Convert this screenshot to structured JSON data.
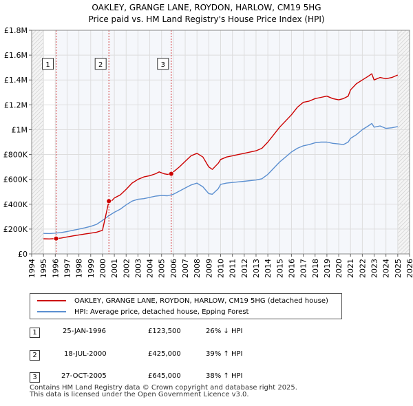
{
  "title_line1": "OAKLEY, GRANGE LANE, ROYDON, HARLOW, CM19 5HG",
  "title_line2": "Price paid vs. HM Land Registry's House Price Index (HPI)",
  "colors": {
    "property": "#cc0000",
    "hpi": "#5b8fd0",
    "sale_marker": "#cc0000",
    "vline": "#cc0000",
    "shade": "#e8eef7"
  },
  "legend": {
    "property_label": "OAKLEY, GRANGE LANE, ROYDON, HARLOW, CM19 5HG (detached house)",
    "hpi_label": "HPI: Average price, detached house, Epping Forest"
  },
  "sales": [
    {
      "num": "1",
      "date": "25-JAN-1996",
      "price": "£123,500",
      "hpi_diff": "26% ↓ HPI"
    },
    {
      "num": "2",
      "date": "18-JUL-2000",
      "price": "£425,000",
      "hpi_diff": "39% ↑ HPI"
    },
    {
      "num": "3",
      "date": "27-OCT-2005",
      "price": "£645,000",
      "hpi_diff": "38% ↑ HPI"
    }
  ],
  "footer_line1": "Contains HM Land Registry data © Crown copyright and database right 2025.",
  "footer_line2": "This data is licensed under the Open Government Licence v3.0.",
  "chart_data": {
    "type": "line",
    "xlim": [
      1994,
      2026
    ],
    "ylim": [
      0,
      1800000
    ],
    "x_ticks": [
      1994,
      1995,
      1996,
      1997,
      1998,
      1999,
      2000,
      2001,
      2002,
      2003,
      2004,
      2005,
      2006,
      2007,
      2008,
      2009,
      2010,
      2011,
      2012,
      2013,
      2014,
      2015,
      2016,
      2017,
      2018,
      2019,
      2020,
      2021,
      2022,
      2023,
      2024,
      2025,
      2026
    ],
    "y_ticks": [
      0,
      200000,
      400000,
      600000,
      800000,
      1000000,
      1200000,
      1400000,
      1600000,
      1800000
    ],
    "y_tick_labels": [
      "£0",
      "£200K",
      "£400K",
      "£600K",
      "£800K",
      "£1M",
      "£1.2M",
      "£1.4M",
      "£1.6M",
      "£1.8M"
    ],
    "hatched_ranges": [
      [
        1994,
        1995.0
      ],
      [
        2025.0,
        2026
      ]
    ],
    "grid": true,
    "series": [
      {
        "name": "OAKLEY, GRANGE LANE, ROYDON, HARLOW, CM19 5HG (detached house)",
        "x": [
          1995.0,
          1995.5,
          1996.07,
          1996.5,
          1997,
          1997.5,
          1998,
          1998.5,
          1999,
          1999.5,
          2000.0,
          2000.54,
          2000.8,
          2001.0,
          2001.5,
          2002,
          2002.5,
          2003,
          2003.5,
          2004,
          2004.5,
          2004.8,
          2005.2,
          2005.5,
          2005.82,
          2006,
          2006.5,
          2007,
          2007.5,
          2008,
          2008.5,
          2009,
          2009.3,
          2009.8,
          2010,
          2010.5,
          2011,
          2011.5,
          2012,
          2012.5,
          2013,
          2013.5,
          2014,
          2014.5,
          2015,
          2015.5,
          2016,
          2016.5,
          2017,
          2017.5,
          2018,
          2018.5,
          2019,
          2019.5,
          2020,
          2020.4,
          2020.8,
          2021,
          2021.5,
          2022,
          2022.5,
          2022.8,
          2023,
          2023.5,
          2024,
          2024.5,
          2025.0
        ],
        "y": [
          122000,
          121000,
          123500,
          128000,
          137000,
          145000,
          153000,
          160000,
          167000,
          175000,
          190000,
          425000,
          430000,
          450000,
          475000,
          520000,
          570000,
          600000,
          620000,
          630000,
          645000,
          660000,
          645000,
          640000,
          645000,
          660000,
          700000,
          745000,
          790000,
          810000,
          780000,
          700000,
          680000,
          730000,
          760000,
          780000,
          790000,
          800000,
          810000,
          820000,
          830000,
          850000,
          900000,
          960000,
          1020000,
          1070000,
          1120000,
          1180000,
          1220000,
          1230000,
          1250000,
          1260000,
          1270000,
          1250000,
          1240000,
          1250000,
          1270000,
          1320000,
          1370000,
          1400000,
          1430000,
          1450000,
          1400000,
          1420000,
          1410000,
          1420000,
          1440000
        ]
      },
      {
        "name": "HPI: Average price, detached house, Epping Forest",
        "x": [
          1995.0,
          1995.5,
          1996,
          1996.5,
          1997,
          1997.5,
          1998,
          1998.5,
          1999,
          1999.5,
          2000,
          2000.5,
          2001,
          2001.5,
          2002,
          2002.5,
          2003,
          2003.5,
          2004,
          2004.5,
          2005,
          2005.5,
          2006,
          2006.5,
          2007,
          2007.5,
          2008,
          2008.5,
          2009,
          2009.3,
          2009.8,
          2010,
          2010.5,
          2011,
          2011.5,
          2012,
          2012.5,
          2013,
          2013.5,
          2014,
          2014.5,
          2015,
          2015.5,
          2016,
          2016.5,
          2017,
          2017.5,
          2018,
          2018.5,
          2019,
          2019.5,
          2020,
          2020.4,
          2020.8,
          2021,
          2021.5,
          2022,
          2022.5,
          2022.8,
          2023,
          2023.5,
          2024,
          2024.5,
          2025.0
        ],
        "y": [
          165000,
          164000,
          167000,
          172000,
          180000,
          190000,
          200000,
          210000,
          222000,
          238000,
          270000,
          305000,
          335000,
          360000,
          395000,
          425000,
          440000,
          445000,
          455000,
          465000,
          470000,
          468000,
          480000,
          505000,
          530000,
          555000,
          570000,
          540000,
          485000,
          480000,
          525000,
          560000,
          570000,
          575000,
          580000,
          585000,
          590000,
          595000,
          605000,
          640000,
          690000,
          740000,
          780000,
          820000,
          850000,
          870000,
          880000,
          895000,
          900000,
          900000,
          890000,
          885000,
          880000,
          900000,
          930000,
          960000,
          1000000,
          1030000,
          1050000,
          1020000,
          1030000,
          1010000,
          1015000,
          1025000
        ]
      }
    ],
    "sale_points": [
      {
        "label": "1",
        "x": 1996.07,
        "y": 123500
      },
      {
        "label": "2",
        "x": 2000.54,
        "y": 425000
      },
      {
        "label": "3",
        "x": 2005.82,
        "y": 645000
      }
    ]
  }
}
